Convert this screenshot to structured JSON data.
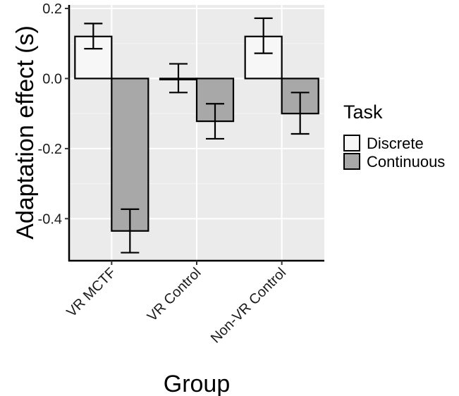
{
  "chart_data": {
    "type": "bar",
    "title": "",
    "xlabel": "Group",
    "ylabel": "Adaptation effect (s)",
    "ylim": [
      -0.52,
      0.21
    ],
    "yticks": [
      -0.4,
      -0.2,
      0.0,
      0.2
    ],
    "ytick_labels": [
      "-0.4",
      "-0.2",
      "0.0",
      "0.2"
    ],
    "categories": [
      "VR MCTF",
      "VR Control",
      "Non-VR Control"
    ],
    "series": [
      {
        "name": "Discrete",
        "color": "#f7f7f7",
        "values": [
          0.12,
          0.0,
          0.12
        ],
        "err_low": [
          0.085,
          -0.04,
          0.072
        ],
        "err_high": [
          0.157,
          0.042,
          0.172
        ]
      },
      {
        "name": "Continuous",
        "color": "#a8a8a8",
        "values": [
          -0.435,
          -0.122,
          -0.1
        ],
        "err_low": [
          -0.497,
          -0.172,
          -0.158
        ],
        "err_high": [
          -0.373,
          -0.072,
          -0.04
        ]
      }
    ],
    "legend": {
      "title": "Task",
      "position": "right"
    },
    "grid": true,
    "panel_background": "#ebebeb"
  }
}
